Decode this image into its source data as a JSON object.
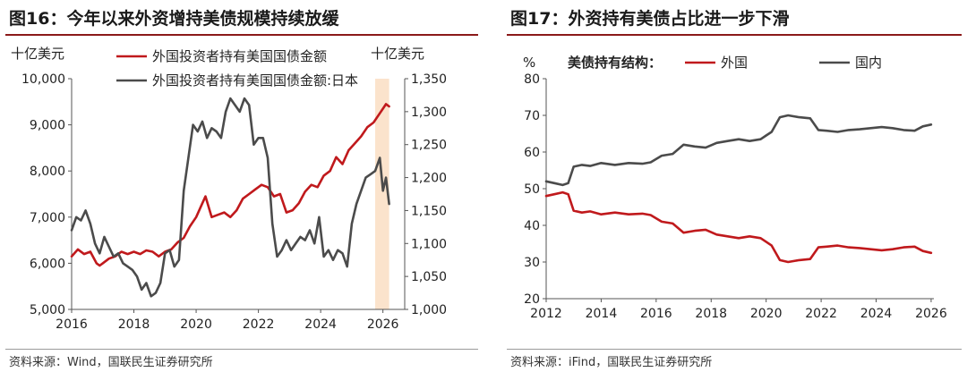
{
  "charts": [
    {
      "title": "图16：今年以来外资增持美债规模持续放缓",
      "source": "资料来源：Wind，国联民生证券研究所",
      "chart_data": {
        "type": "line",
        "left_unit": "十亿美元",
        "right_unit": "十亿美元",
        "xlim": [
          2016,
          2026.7
        ],
        "x_ticks": [
          2016,
          2018,
          2020,
          2022,
          2024,
          2026
        ],
        "ylim_left": [
          5000,
          10000
        ],
        "yticks_left": [
          5000,
          6000,
          7000,
          8000,
          9000,
          10000
        ],
        "ytick_labels_left": [
          "5,000",
          "6,000",
          "7,000",
          "8,000",
          "9,000",
          "10,000"
        ],
        "ylim_right": [
          1000,
          1350
        ],
        "yticks_right": [
          1000,
          1050,
          1100,
          1150,
          1200,
          1250,
          1300,
          1350
        ],
        "ytick_labels_right": [
          "1,000",
          "1,050",
          "1,100",
          "1,150",
          "1,200",
          "1,250",
          "1,300",
          "1,350"
        ],
        "highlight_x": [
          2025.75,
          2026.2
        ],
        "highlight_color": "#fbe3cc",
        "series": [
          {
            "name": "外国投资者持有美国国债金额",
            "axis": "left",
            "color": "#c0191c",
            "x": [
              2016.0,
              2016.2,
              2016.4,
              2016.6,
              2016.8,
              2016.9,
              2017.0,
              2017.2,
              2017.4,
              2017.6,
              2017.8,
              2018.0,
              2018.2,
              2018.4,
              2018.6,
              2018.8,
              2019.0,
              2019.2,
              2019.4,
              2019.6,
              2019.8,
              2020.0,
              2020.2,
              2020.3,
              2020.5,
              2020.7,
              2020.9,
              2021.1,
              2021.3,
              2021.5,
              2021.7,
              2021.9,
              2022.1,
              2022.3,
              2022.5,
              2022.7,
              2022.9,
              2023.1,
              2023.3,
              2023.5,
              2023.7,
              2023.9,
              2024.1,
              2024.3,
              2024.5,
              2024.7,
              2024.9,
              2025.1,
              2025.3,
              2025.5,
              2025.7,
              2025.9,
              2026.0,
              2026.1,
              2026.2
            ],
            "values": [
              6150,
              6300,
              6200,
              6250,
              6000,
              5950,
              6000,
              6100,
              6150,
              6250,
              6200,
              6250,
              6200,
              6280,
              6250,
              6150,
              6250,
              6300,
              6450,
              6550,
              6800,
              7000,
              7300,
              7450,
              7000,
              7050,
              7100,
              7000,
              7150,
              7400,
              7500,
              7600,
              7700,
              7650,
              7450,
              7500,
              7100,
              7150,
              7300,
              7550,
              7700,
              7650,
              7900,
              8000,
              8300,
              8150,
              8450,
              8600,
              8750,
              8950,
              9050,
              9250,
              9350,
              9450,
              9400
            ]
          },
          {
            "name": "外国投资者持有美国国债金额:日本",
            "axis": "right",
            "color": "#4b4b4b",
            "x": [
              2016.0,
              2016.15,
              2016.3,
              2016.45,
              2016.6,
              2016.75,
              2016.9,
              2017.05,
              2017.2,
              2017.35,
              2017.5,
              2017.65,
              2017.8,
              2017.95,
              2018.1,
              2018.25,
              2018.4,
              2018.55,
              2018.7,
              2018.85,
              2019.0,
              2019.15,
              2019.3,
              2019.45,
              2019.6,
              2019.75,
              2019.9,
              2020.05,
              2020.2,
              2020.35,
              2020.5,
              2020.65,
              2020.8,
              2020.95,
              2021.1,
              2021.25,
              2021.4,
              2021.55,
              2021.7,
              2021.85,
              2022.0,
              2022.15,
              2022.3,
              2022.45,
              2022.6,
              2022.75,
              2022.9,
              2023.05,
              2023.2,
              2023.35,
              2023.5,
              2023.65,
              2023.8,
              2023.95,
              2024.1,
              2024.25,
              2024.4,
              2024.55,
              2024.7,
              2024.85,
              2025.0,
              2025.15,
              2025.3,
              2025.45,
              2025.6,
              2025.75,
              2025.9,
              2026.0,
              2026.1,
              2026.2
            ],
            "values": [
              1120,
              1140,
              1135,
              1150,
              1130,
              1100,
              1085,
              1110,
              1095,
              1080,
              1085,
              1070,
              1065,
              1060,
              1050,
              1030,
              1040,
              1020,
              1025,
              1040,
              1085,
              1090,
              1065,
              1075,
              1180,
              1230,
              1280,
              1270,
              1285,
              1260,
              1275,
              1270,
              1260,
              1300,
              1320,
              1310,
              1300,
              1320,
              1310,
              1250,
              1260,
              1260,
              1230,
              1130,
              1080,
              1090,
              1105,
              1090,
              1100,
              1110,
              1105,
              1120,
              1100,
              1140,
              1080,
              1090,
              1075,
              1090,
              1085,
              1065,
              1130,
              1160,
              1180,
              1200,
              1205,
              1210,
              1230,
              1180,
              1200,
              1160
            ]
          }
        ]
      }
    },
    {
      "title": "图17：外资持有美债占比进一步下滑",
      "source": "资料来源：iFind，国联民生证券研究所",
      "chart_data": {
        "type": "line",
        "left_unit": "%",
        "legend_title": "美债持有结构：",
        "xlim": [
          2012,
          2026.1
        ],
        "x_ticks": [
          2012,
          2014,
          2016,
          2018,
          2020,
          2022,
          2024,
          2026
        ],
        "ylim_left": [
          20,
          80
        ],
        "yticks_left": [
          20,
          30,
          40,
          50,
          60,
          70,
          80
        ],
        "ytick_labels_left": [
          "20",
          "30",
          "40",
          "50",
          "60",
          "70",
          "80"
        ],
        "series": [
          {
            "name": "外国",
            "axis": "left",
            "color": "#c0191c",
            "x": [
              2012.0,
              2012.3,
              2012.6,
              2012.8,
              2013.0,
              2013.3,
              2013.6,
              2014.0,
              2014.5,
              2015.0,
              2015.5,
              2015.8,
              2016.2,
              2016.6,
              2017.0,
              2017.4,
              2017.8,
              2018.2,
              2018.6,
              2019.0,
              2019.4,
              2019.8,
              2020.0,
              2020.2,
              2020.5,
              2020.8,
              2021.2,
              2021.6,
              2021.9,
              2022.2,
              2022.6,
              2023.0,
              2023.4,
              2023.8,
              2024.2,
              2024.6,
              2025.0,
              2025.4,
              2025.7,
              2026.0
            ],
            "values": [
              48,
              48.5,
              49,
              48.5,
              44,
              43.5,
              43.8,
              43,
              43.5,
              43,
              43.2,
              42.8,
              41,
              40.5,
              38,
              38.5,
              38.8,
              37.5,
              37,
              36.5,
              37,
              36.5,
              35.5,
              34.5,
              30.5,
              30,
              30.5,
              30.8,
              34,
              34.2,
              34.5,
              34,
              33.8,
              33.5,
              33.2,
              33.5,
              34,
              34.2,
              33,
              32.5
            ]
          },
          {
            "name": "国内",
            "axis": "left",
            "color": "#4b4b4b",
            "x": [
              2012.0,
              2012.3,
              2012.6,
              2012.8,
              2013.0,
              2013.3,
              2013.6,
              2014.0,
              2014.5,
              2015.0,
              2015.5,
              2015.8,
              2016.2,
              2016.6,
              2017.0,
              2017.4,
              2017.8,
              2018.2,
              2018.6,
              2019.0,
              2019.4,
              2019.8,
              2020.0,
              2020.2,
              2020.5,
              2020.8,
              2021.2,
              2021.6,
              2021.9,
              2022.2,
              2022.6,
              2023.0,
              2023.4,
              2023.8,
              2024.2,
              2024.6,
              2025.0,
              2025.4,
              2025.7,
              2026.0
            ],
            "values": [
              52,
              51.5,
              51,
              51.5,
              56,
              56.5,
              56.2,
              57,
              56.5,
              57,
              56.8,
              57.2,
              59,
              59.5,
              62,
              61.5,
              61.2,
              62.5,
              63,
              63.5,
              63,
              63.5,
              64.5,
              65.5,
              69.5,
              70,
              69.5,
              69.2,
              66,
              65.8,
              65.5,
              66,
              66.2,
              66.5,
              66.8,
              66.5,
              66,
              65.8,
              67,
              67.5
            ]
          }
        ]
      }
    }
  ]
}
